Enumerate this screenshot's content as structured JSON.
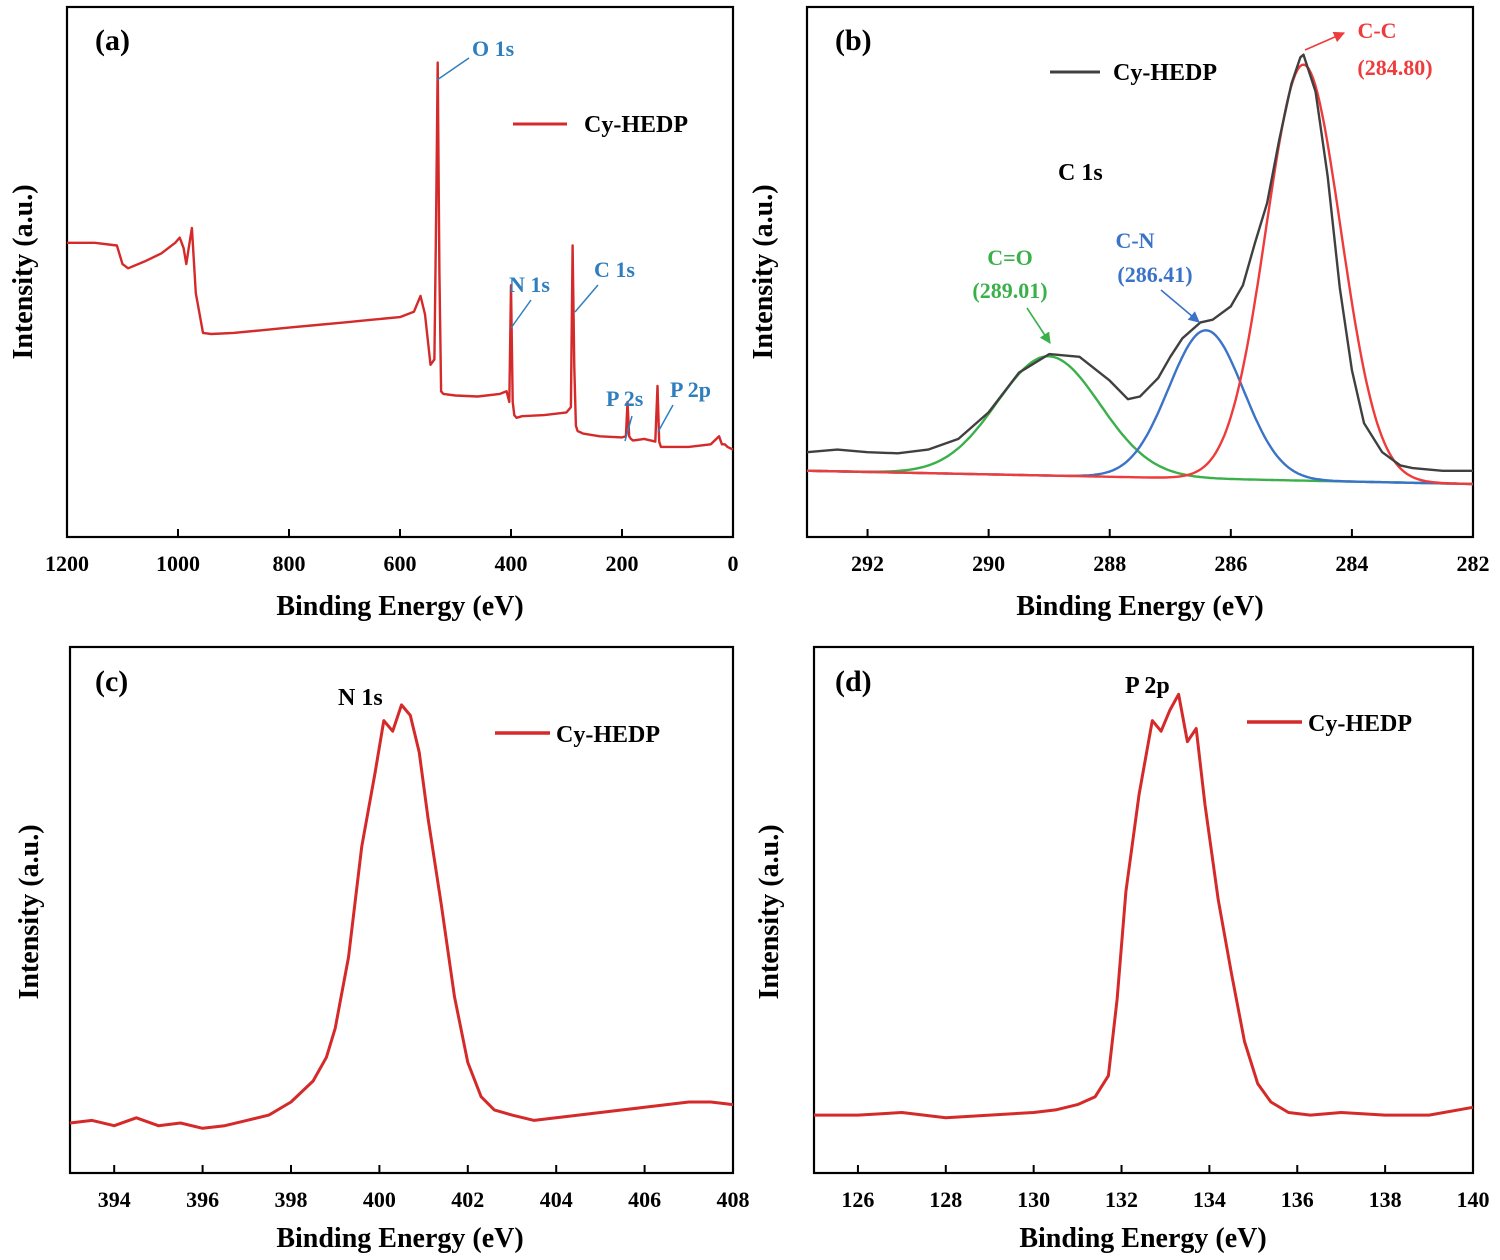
{
  "chart_data": [
    {
      "panel": "(a)",
      "type": "line",
      "xlabel": "Binding Energy (eV)",
      "ylabel": "Intensity (a.u.)",
      "xlim": [
        1200,
        0
      ],
      "ylim": [
        0,
        100
      ],
      "xticks": [
        1200,
        1000,
        800,
        600,
        400,
        200,
        0
      ],
      "legend": "top-right",
      "series": [
        {
          "name": "Cy-HEDP",
          "color": "#d42a2a",
          "x": [
            1200,
            1150,
            1110,
            1100,
            1090,
            1060,
            1030,
            1005,
            997,
            990,
            985,
            980,
            975,
            968,
            955,
            940,
            900,
            850,
            800,
            750,
            700,
            650,
            600,
            575,
            563,
            555,
            545,
            538,
            535,
            532,
            529,
            526,
            522,
            500,
            460,
            420,
            408,
            403,
            400,
            397,
            394,
            390,
            380,
            340,
            300,
            292,
            289,
            286,
            283,
            280,
            270,
            240,
            200,
            193,
            190,
            187,
            184,
            180,
            160,
            140,
            136,
            133,
            130,
            127,
            120,
            80,
            40,
            25,
            20,
            15,
            10,
            0
          ],
          "values": [
            55.5,
            55.5,
            55.0,
            51.5,
            50.7,
            52.0,
            53.5,
            55.5,
            56.5,
            54.5,
            51.5,
            55.0,
            58.3,
            46.0,
            38.5,
            38.3,
            38.5,
            39.0,
            39.5,
            40.0,
            40.5,
            41.0,
            41.5,
            42.5,
            45.5,
            42.0,
            32.5,
            33.5,
            60.0,
            89.5,
            50.0,
            27.5,
            27.0,
            26.7,
            26.5,
            27.0,
            27.5,
            25.5,
            47.5,
            25.5,
            23.0,
            22.5,
            22.8,
            23.0,
            23.5,
            24.5,
            55.0,
            32.0,
            21.0,
            20.0,
            19.5,
            19.0,
            18.8,
            19.0,
            25.5,
            19.0,
            18.5,
            18.2,
            18.5,
            18.0,
            28.5,
            18.0,
            17.0,
            17.0,
            17.0,
            17.0,
            17.5,
            19.0,
            17.5,
            17.5,
            17.0,
            16.5
          ]
        }
      ],
      "annotations": [
        "O 1s",
        "N 1s",
        "C 1s",
        "P 2s",
        "P 2p"
      ]
    },
    {
      "panel": "(b)",
      "type": "line",
      "title": "C 1s",
      "xlabel": "Binding Energy (eV)",
      "ylabel": "Intensity (a.u.)",
      "xlim": [
        293,
        282
      ],
      "ylim": [
        0,
        100
      ],
      "xticks": [
        292,
        290,
        288,
        286,
        284,
        282
      ],
      "legend": "top",
      "series": [
        {
          "name": "Cy-HEDP",
          "color": "#404040",
          "x": [
            293,
            292.5,
            292,
            291.5,
            291,
            290.5,
            290,
            289.5,
            289,
            288.5,
            288,
            287.7,
            287.5,
            287.2,
            287,
            286.8,
            286.5,
            286.3,
            286,
            285.8,
            285.6,
            285.4,
            285.2,
            285,
            284.85,
            284.8,
            284.6,
            284.4,
            284.2,
            284,
            283.8,
            283.5,
            283.2,
            283,
            282.5,
            282
          ],
          "values": [
            16.0,
            16.5,
            16.0,
            15.8,
            16.5,
            18.5,
            23.5,
            31.0,
            34.5,
            34.0,
            29.5,
            26.0,
            26.5,
            30.0,
            34.0,
            37.5,
            40.5,
            41.0,
            43.5,
            47.5,
            55.5,
            63.0,
            75.0,
            85.5,
            90.5,
            91.0,
            84.0,
            68.0,
            47.0,
            31.5,
            21.5,
            16.0,
            13.5,
            13.0,
            12.5,
            12.5
          ]
        }
      ],
      "components": [
        {
          "name": "C=O",
          "label_value": "(289.01)",
          "center": 289.01,
          "fwhm": 2.0,
          "height": 22.5,
          "color": "#3ab04a"
        },
        {
          "name": "C-N",
          "label_value": "(286.41)",
          "center": 286.41,
          "fwhm": 1.45,
          "height": 28.0,
          "color": "#3a73c8"
        },
        {
          "name": "C-C",
          "label_value": "(284.80)",
          "center": 284.8,
          "fwhm": 1.45,
          "height": 78.5,
          "color": "#ee3b3b"
        }
      ],
      "baseline": {
        "left": 12.5,
        "right": 10.0
      }
    },
    {
      "panel": "(c)",
      "type": "line",
      "xlabel": "Binding Energy (eV)",
      "ylabel": "Intensity (a.u.)",
      "xlim": [
        393,
        408
      ],
      "ylim": [
        0,
        100
      ],
      "xticks": [
        394,
        396,
        398,
        400,
        402,
        404,
        406,
        408
      ],
      "legend": "top-right",
      "annotations": [
        "N 1s"
      ],
      "series": [
        {
          "name": "Cy-HEDP",
          "color": "#d42a2a",
          "x": [
            393,
            393.5,
            394,
            394.5,
            395,
            395.5,
            396,
            396.5,
            397,
            397.5,
            398,
            398.5,
            398.8,
            399,
            399.3,
            399.6,
            399.9,
            400.1,
            400.3,
            400.5,
            400.7,
            400.9,
            401.1,
            401.4,
            401.7,
            402,
            402.3,
            402.6,
            403,
            403.5,
            404,
            404.5,
            405,
            405.5,
            406,
            406.5,
            407,
            407.5,
            408
          ],
          "values": [
            9.5,
            10.0,
            9.0,
            10.5,
            9.0,
            9.5,
            8.5,
            9.0,
            10.0,
            11.0,
            13.5,
            17.5,
            22.0,
            27.5,
            41.0,
            62.0,
            76.0,
            86.0,
            84.0,
            89.0,
            87.0,
            80.0,
            67.5,
            51.0,
            33.5,
            21.0,
            14.5,
            12.0,
            11.0,
            10.0,
            10.5,
            11.0,
            11.5,
            12.0,
            12.5,
            13.0,
            13.5,
            13.5,
            13.0
          ]
        }
      ]
    },
    {
      "panel": "(d)",
      "type": "line",
      "xlabel": "Binding Energy (eV)",
      "ylabel": "Intensity (a.u.)",
      "xlim": [
        125,
        140
      ],
      "ylim": [
        0,
        100
      ],
      "xticks": [
        126,
        128,
        130,
        132,
        134,
        136,
        138,
        140
      ],
      "legend": "top-right",
      "annotations": [
        "P 2p"
      ],
      "series": [
        {
          "name": "Cy-HEDP",
          "color": "#d42a2a",
          "x": [
            125,
            126,
            127,
            128,
            129,
            130,
            130.5,
            131,
            131.4,
            131.7,
            131.9,
            132.1,
            132.4,
            132.7,
            132.9,
            133.1,
            133.3,
            133.5,
            133.7,
            133.9,
            134.2,
            134.5,
            134.8,
            135.1,
            135.4,
            135.8,
            136.3,
            137,
            138,
            139,
            140
          ],
          "values": [
            11.0,
            11.0,
            11.5,
            10.5,
            11.0,
            11.5,
            12.0,
            13.0,
            14.5,
            18.5,
            33.0,
            53.5,
            72.0,
            86.0,
            84.0,
            88.0,
            91.0,
            82.0,
            84.5,
            70.0,
            52.0,
            38.0,
            25.0,
            17.0,
            13.5,
            11.5,
            11.0,
            11.5,
            11.0,
            11.0,
            12.5
          ]
        }
      ]
    }
  ]
}
